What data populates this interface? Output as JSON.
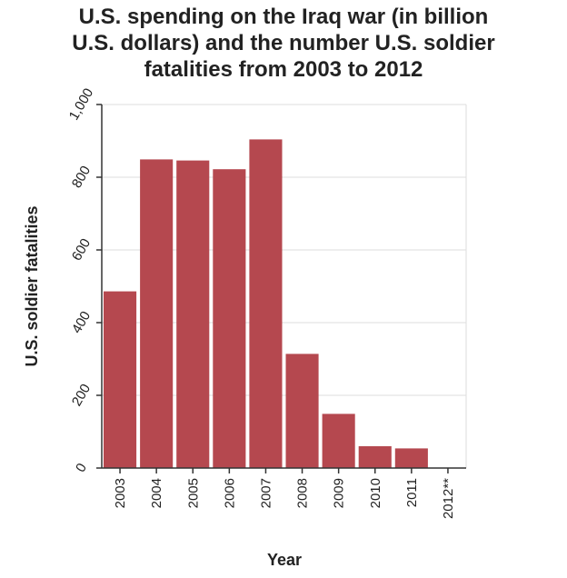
{
  "chart_data": {
    "type": "bar",
    "title_lines": [
      "U.S. spending on the Iraq war (in billion",
      "U.S. dollars) and the number U.S. soldier",
      "fatalities from 2003 to 2012"
    ],
    "xlabel": "Year",
    "ylabel": "U.S. soldier fatalities",
    "categories": [
      "2003",
      "2004",
      "2005",
      "2006",
      "2007",
      "2008",
      "2009",
      "2010",
      "2011",
      "2012**"
    ],
    "values": [
      486,
      849,
      846,
      822,
      904,
      314,
      149,
      60,
      54,
      1
    ],
    "ylim": [
      0,
      1000
    ],
    "yticks": [
      0,
      200,
      400,
      600,
      800,
      1000
    ],
    "ytick_labels": [
      "0",
      "200",
      "400",
      "600",
      "800",
      "1,000"
    ],
    "grid": true,
    "legend": "none",
    "colors": {
      "bar": "#b5484f",
      "grid": "#dddddd",
      "axis": "#333333"
    }
  }
}
